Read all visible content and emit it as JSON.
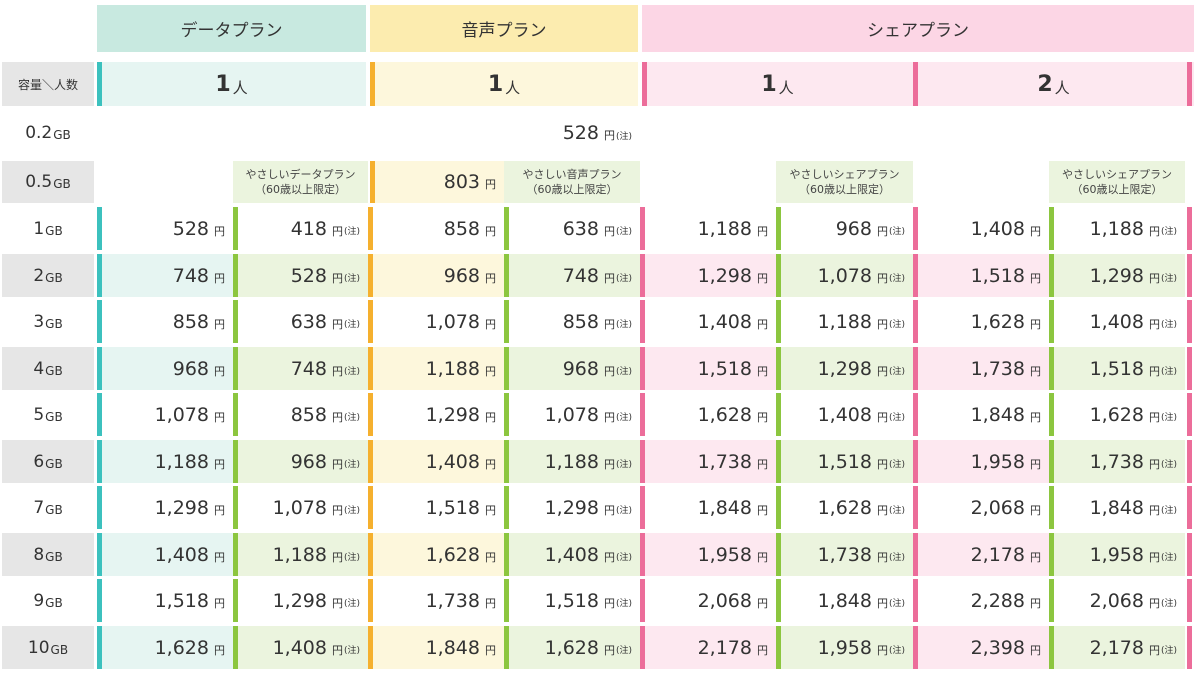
{
  "plans": [
    {
      "label": "データプラン"
    },
    {
      "label": "音声プラン"
    },
    {
      "label": "シェアプラン"
    }
  ],
  "corner_label": "容量＼人数",
  "people": [
    {
      "num": "1",
      "unit": "人"
    },
    {
      "num": "1",
      "unit": "人"
    },
    {
      "num": "1",
      "unit": "人"
    },
    {
      "num": "2",
      "unit": "人"
    }
  ],
  "gb_unit": "GB",
  "yen": "円",
  "note": "(注)",
  "row_02": {
    "label": "0.2",
    "price": "528"
  },
  "row_05": {
    "label": "0.5",
    "data_yasashii": {
      "line1": "やさしいデータプラン",
      "line2": "（60歳以上限定）"
    },
    "voice_price": "803",
    "voice_yasashii": {
      "line1": "やさしい音声プラン",
      "line2": "（60歳以上限定）"
    },
    "share1_yasashii": {
      "line1": "やさしいシェアプラン",
      "line2": "（60歳以上限定）"
    },
    "share2_yasashii": {
      "line1": "やさしいシェアプラン",
      "line2": "（60歳以上限定）"
    }
  },
  "rows": [
    {
      "label": "1",
      "v": [
        "528",
        "418",
        "858",
        "638",
        "1,188",
        "968",
        "1,408",
        "1,188"
      ]
    },
    {
      "label": "2",
      "v": [
        "748",
        "528",
        "968",
        "748",
        "1,298",
        "1,078",
        "1,518",
        "1,298"
      ]
    },
    {
      "label": "3",
      "v": [
        "858",
        "638",
        "1,078",
        "858",
        "1,408",
        "1,188",
        "1,628",
        "1,408"
      ]
    },
    {
      "label": "4",
      "v": [
        "968",
        "748",
        "1,188",
        "968",
        "1,518",
        "1,298",
        "1,738",
        "1,518"
      ]
    },
    {
      "label": "5",
      "v": [
        "1,078",
        "858",
        "1,298",
        "1,078",
        "1,628",
        "1,408",
        "1,848",
        "1,628"
      ]
    },
    {
      "label": "6",
      "v": [
        "1,188",
        "968",
        "1,408",
        "1,188",
        "1,738",
        "1,518",
        "1,958",
        "1,738"
      ]
    },
    {
      "label": "7",
      "v": [
        "1,298",
        "1,078",
        "1,518",
        "1,298",
        "1,848",
        "1,628",
        "2,068",
        "1,848"
      ]
    },
    {
      "label": "8",
      "v": [
        "1,408",
        "1,188",
        "1,628",
        "1,408",
        "1,958",
        "1,738",
        "2,178",
        "1,958"
      ]
    },
    {
      "label": "9",
      "v": [
        "1,518",
        "1,298",
        "1,738",
        "1,518",
        "2,068",
        "1,848",
        "2,288",
        "2,068"
      ]
    },
    {
      "label": "10",
      "v": [
        "1,628",
        "1,408",
        "1,848",
        "1,628",
        "2,178",
        "1,958",
        "2,398",
        "2,178"
      ]
    }
  ],
  "colors": {
    "data_accent": "#3cc1be",
    "voice_accent": "#f5b02e",
    "share_accent": "#ec6d9a",
    "senior_accent": "#8cc63f",
    "data_hdr": "#c8e9e0",
    "voice_hdr": "#fcecaf",
    "share_hdr": "#fcd6e5",
    "data_tint": "#e6f5f2",
    "voice_tint": "#fdf7dc",
    "share_tint": "#fde8f0",
    "senior_tint": "#ebf4de",
    "label_gray": "#e6e6e6"
  }
}
